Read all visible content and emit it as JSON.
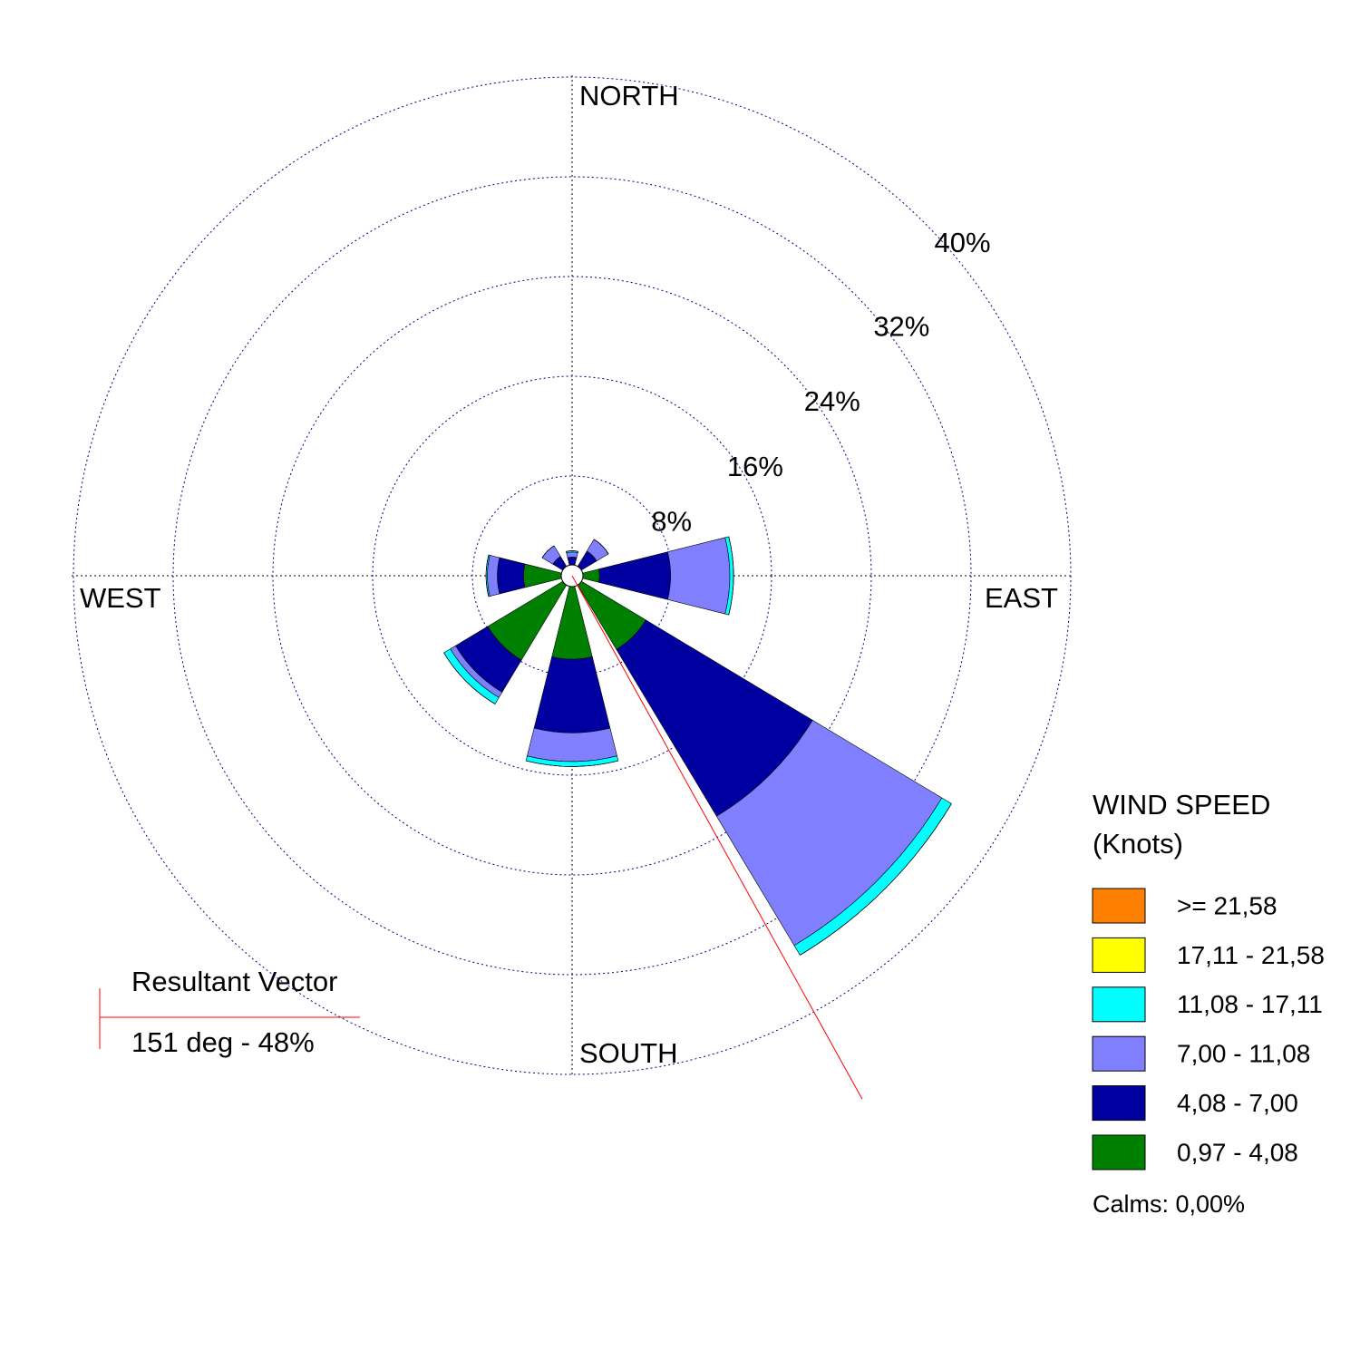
{
  "chart_data": {
    "type": "windrose",
    "direction_labels": {
      "north": "NORTH",
      "east": "EAST",
      "south": "SOUTH",
      "west": "WEST"
    },
    "directions": [
      0,
      45,
      90,
      135,
      180,
      225,
      270,
      315
    ],
    "series": [
      {
        "name": "0,97 - 4,08",
        "color": "#008000",
        "values": [
          0.9,
          0.9,
          2.2,
          6.9,
          6.7,
          7.9,
          3.9,
          0.9
        ]
      },
      {
        "name": "4,08 - 7,00",
        "color": "#0000a0",
        "values": [
          0.6,
          1.4,
          5.7,
          15.6,
          5.9,
          3.0,
          2.1,
          0.9
        ]
      },
      {
        "name": "7,00 - 11,08",
        "color": "#8080ff",
        "values": [
          0.4,
          1.1,
          4.75,
          12.1,
          2.3,
          0.5,
          0.8,
          1.0
        ]
      },
      {
        "name": "11,08 - 17,11",
        "color": "#00ffff",
        "values": [
          0.1,
          0,
          0.3,
          0.9,
          0.4,
          0.6,
          0.1,
          0
        ]
      },
      {
        "name": "17,11 - 21,58",
        "color": "#ffff00",
        "values": [
          0,
          0,
          0,
          0,
          0,
          0,
          0,
          0
        ]
      },
      {
        "name": ">= 21,58",
        "color": "#ff8000",
        "values": [
          0,
          0,
          0,
          0,
          0,
          0,
          0,
          0
        ]
      }
    ],
    "rlim": [
      0,
      40
    ],
    "rticks": [
      {
        "value": 8,
        "label": "8%"
      },
      {
        "value": 16,
        "label": "16%"
      },
      {
        "value": 24,
        "label": "24%"
      },
      {
        "value": 32,
        "label": "32%"
      },
      {
        "value": 40,
        "label": "40%"
      }
    ],
    "legend_title": [
      "WIND SPEED",
      "(Knots)"
    ],
    "calms_label": "Calms: 0,00%",
    "resultant": {
      "title": "Resultant Vector",
      "label": "151 deg - 48%",
      "direction": 151,
      "percent": 48,
      "color": "#ff0000"
    }
  }
}
